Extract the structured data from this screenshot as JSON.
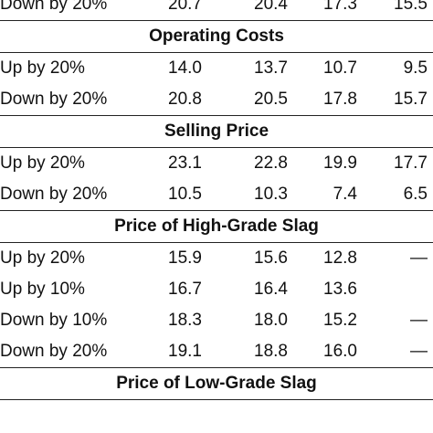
{
  "rows": [
    {
      "type": "row",
      "label": "Down by 20%",
      "values": [
        "20.7",
        "20.4",
        "17.3",
        "15.5"
      ]
    },
    {
      "type": "section",
      "title": "Operating Costs"
    },
    {
      "type": "row",
      "label": "Up by 20%",
      "values": [
        "14.0",
        "13.7",
        "10.7",
        "9.5"
      ]
    },
    {
      "type": "row",
      "label": "Down by 20%",
      "values": [
        "20.8",
        "20.5",
        "17.8",
        "15.7"
      ]
    },
    {
      "type": "section",
      "title": "Selling Price"
    },
    {
      "type": "row",
      "label": "Up by 20%",
      "values": [
        "23.1",
        "22.8",
        "19.9",
        "17.7"
      ]
    },
    {
      "type": "row",
      "label": "Down by 20%",
      "values": [
        "10.5",
        "10.3",
        "7.4",
        "6.5"
      ]
    },
    {
      "type": "section",
      "title": "Price of High-Grade Slag"
    },
    {
      "type": "row",
      "label": "Up by 20%",
      "values": [
        "15.9",
        "15.6",
        "12.8",
        "—"
      ]
    },
    {
      "type": "row",
      "label": "Up by 10%",
      "values": [
        "16.7",
        "16.4",
        "13.6",
        ""
      ]
    },
    {
      "type": "row",
      "label": "Down by 10%",
      "values": [
        "18.3",
        "18.0",
        "15.2",
        "—"
      ]
    },
    {
      "type": "row",
      "label": "Down by 20%",
      "values": [
        "19.1",
        "18.8",
        "16.0",
        "—"
      ]
    },
    {
      "type": "section",
      "title": "Price of Low-Grade Slag"
    }
  ]
}
